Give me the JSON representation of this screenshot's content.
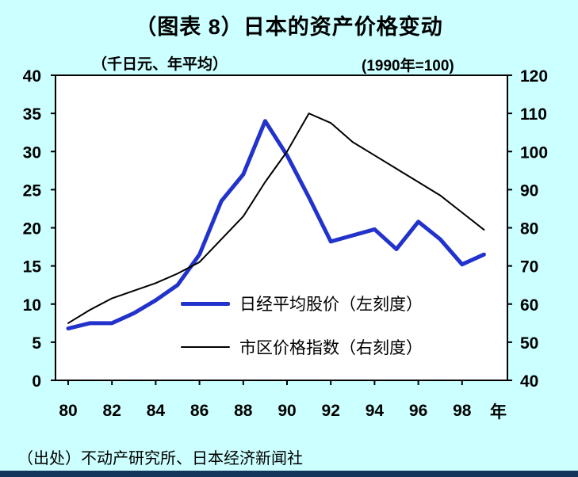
{
  "title": "（图表 8）日本的资产价格变动",
  "left_axis_note": "（千日元、年平均）",
  "right_axis_note": "(1990年=100)",
  "x_unit": "年",
  "source": "（出处）不动产研究所、日本经济新闻社",
  "colors": {
    "background": "#ccffff",
    "plot_background": "#ffffff",
    "axis": "#000000",
    "nikkei_line": "#2233cc",
    "land_index_line": "#000000",
    "bottom_bar": "#14365c"
  },
  "chart_data": {
    "type": "line",
    "title": "（图表 8）日本的资产价格变动",
    "xlabel": "年",
    "x": [
      80,
      81,
      82,
      83,
      84,
      85,
      86,
      87,
      88,
      89,
      90,
      91,
      92,
      93,
      94,
      95,
      96,
      97,
      98,
      99
    ],
    "x_ticks": [
      80,
      82,
      84,
      86,
      88,
      90,
      92,
      94,
      96,
      98
    ],
    "left_axis": {
      "label": "（千日元、年平均）",
      "range": [
        0,
        40
      ],
      "ticks": [
        0,
        5,
        10,
        15,
        20,
        25,
        30,
        35,
        40
      ]
    },
    "right_axis": {
      "label": "(1990年=100)",
      "range": [
        40,
        120
      ],
      "ticks": [
        40,
        50,
        60,
        70,
        80,
        90,
        100,
        110,
        120
      ]
    },
    "grid": false,
    "legend_position": "inside-lower-center",
    "series": [
      {
        "name": "日经平均股价（左刻度）",
        "axis": "left",
        "color": "#2233cc",
        "width": 5,
        "values": [
          6.8,
          7.5,
          7.5,
          8.8,
          10.5,
          12.5,
          16.5,
          23.5,
          27,
          34,
          29.5,
          24,
          18.2,
          19,
          19.8,
          17.2,
          20.8,
          18.5,
          15.2,
          16.5
        ]
      },
      {
        "name": "市区价格指数（右刻度）",
        "axis": "right",
        "color": "#000000",
        "width": 2,
        "values": [
          55,
          58.5,
          61.5,
          63.5,
          65.5,
          68,
          71,
          77,
          83,
          92,
          100,
          110,
          107.5,
          102.5,
          99,
          95.5,
          92,
          88.5,
          84,
          79.5
        ]
      }
    ]
  }
}
